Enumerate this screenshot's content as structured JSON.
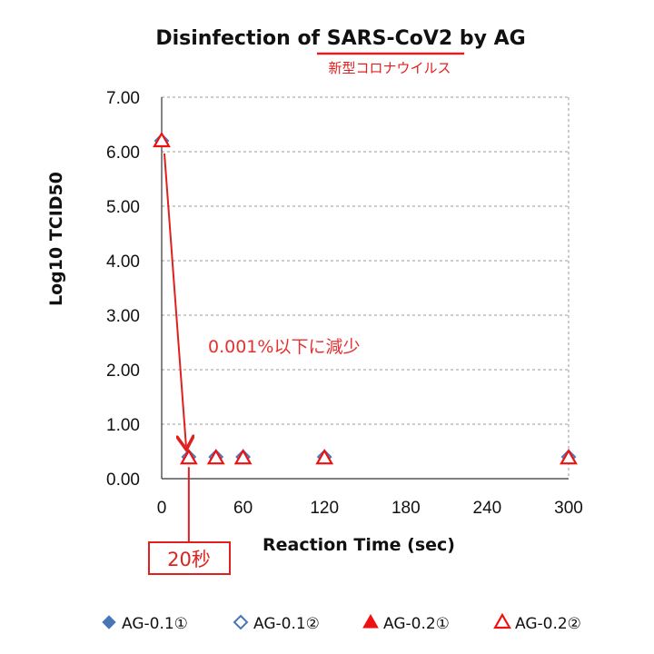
{
  "chart_data": {
    "type": "scatter",
    "title_parts": [
      "Disinfection of ",
      "SARS-CoV2",
      " by AG"
    ],
    "title_note": "新型コロナウイルス",
    "xlabel": "Reaction Time (sec)",
    "ylabel": "Log10 TCID50",
    "xlim": [
      0,
      300
    ],
    "ylim": [
      0,
      7
    ],
    "x_ticks": [
      0,
      60,
      120,
      180,
      240,
      300
    ],
    "y_ticks": [
      "0.00",
      "1.00",
      "2.00",
      "3.00",
      "4.00",
      "5.00",
      "6.00",
      "7.00"
    ],
    "grid": "horizontal dashed",
    "legend_position": "bottom",
    "series": [
      {
        "name": "AG-0.1①",
        "marker": "diamond-filled",
        "color": "#4a76b8",
        "x": [
          0,
          20,
          40,
          60,
          120,
          300
        ],
        "y": [
          6.2,
          0.4,
          0.4,
          0.4,
          0.4,
          0.4
        ]
      },
      {
        "name": "AG-0.1②",
        "marker": "diamond-open",
        "color": "#4a76b8",
        "x": [
          0,
          20,
          40,
          60,
          120,
          300
        ],
        "y": [
          6.2,
          0.4,
          0.4,
          0.4,
          0.4,
          0.4
        ]
      },
      {
        "name": "AG-0.2①",
        "marker": "triangle-filled",
        "color": "#ee1111",
        "x": [
          0,
          20,
          40,
          60,
          120,
          300
        ],
        "y": [
          6.2,
          0.38,
          0.38,
          0.38,
          0.38,
          0.38
        ]
      },
      {
        "name": "AG-0.2②",
        "marker": "triangle-open",
        "color": "#ee1111",
        "x": [
          0,
          20,
          40,
          60,
          120,
          300
        ],
        "y": [
          6.2,
          0.38,
          0.38,
          0.38,
          0.38,
          0.38
        ]
      }
    ],
    "annotations": {
      "reduction_text": "0.001%以下に減少",
      "arrow_from": [
        0,
        6.2
      ],
      "arrow_to": [
        20,
        0.5
      ],
      "highlight_x": 20,
      "highlight_label": "20秒"
    }
  },
  "colors": {
    "accent_red": "#e02020",
    "grid": "#9a9a9a",
    "axis": "#333333"
  }
}
